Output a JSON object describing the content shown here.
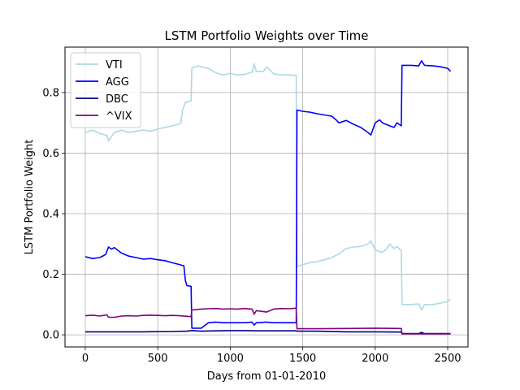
{
  "chart_data": {
    "type": "line",
    "title": "LSTM Portfolio Weights over Time",
    "xlabel": "Days from 01-01-2010",
    "ylabel": "LSTM Portfolio Weight",
    "xlim": [
      -140,
      2640
    ],
    "ylim": [
      -0.04,
      0.95
    ],
    "xticks": [
      0,
      500,
      1000,
      1500,
      2000,
      2500
    ],
    "yticks": [
      0.0,
      0.2,
      0.4,
      0.6,
      0.8
    ],
    "ytick_labels": [
      "0.0",
      "0.2",
      "0.4",
      "0.6",
      "0.8"
    ],
    "grid": true,
    "legend_position": "upper-left",
    "series": [
      {
        "name": "VTI",
        "color": "#add8e6",
        "points": [
          [
            0,
            0.668
          ],
          [
            50,
            0.676
          ],
          [
            100,
            0.665
          ],
          [
            150,
            0.658
          ],
          [
            160,
            0.64
          ],
          [
            200,
            0.668
          ],
          [
            250,
            0.676
          ],
          [
            300,
            0.668
          ],
          [
            350,
            0.672
          ],
          [
            400,
            0.676
          ],
          [
            450,
            0.672
          ],
          [
            500,
            0.68
          ],
          [
            550,
            0.685
          ],
          [
            600,
            0.69
          ],
          [
            640,
            0.695
          ],
          [
            660,
            0.7
          ],
          [
            670,
            0.74
          ],
          [
            690,
            0.768
          ],
          [
            730,
            0.772
          ],
          [
            735,
            0.88
          ],
          [
            780,
            0.888
          ],
          [
            800,
            0.885
          ],
          [
            850,
            0.88
          ],
          [
            900,
            0.865
          ],
          [
            950,
            0.858
          ],
          [
            1000,
            0.864
          ],
          [
            1050,
            0.858
          ],
          [
            1100,
            0.86
          ],
          [
            1150,
            0.867
          ],
          [
            1165,
            0.895
          ],
          [
            1180,
            0.87
          ],
          [
            1230,
            0.87
          ],
          [
            1250,
            0.885
          ],
          [
            1300,
            0.862
          ],
          [
            1350,
            0.858
          ],
          [
            1400,
            0.858
          ],
          [
            1455,
            0.857
          ],
          [
            1460,
            0.225
          ],
          [
            1500,
            0.232
          ],
          [
            1550,
            0.238
          ],
          [
            1600,
            0.242
          ],
          [
            1650,
            0.248
          ],
          [
            1700,
            0.255
          ],
          [
            1750,
            0.268
          ],
          [
            1800,
            0.285
          ],
          [
            1850,
            0.29
          ],
          [
            1900,
            0.292
          ],
          [
            1950,
            0.3
          ],
          [
            1970,
            0.31
          ],
          [
            2000,
            0.28
          ],
          [
            2050,
            0.272
          ],
          [
            2080,
            0.285
          ],
          [
            2100,
            0.3
          ],
          [
            2130,
            0.285
          ],
          [
            2150,
            0.292
          ],
          [
            2180,
            0.278
          ],
          [
            2185,
            0.1
          ],
          [
            2250,
            0.1
          ],
          [
            2300,
            0.102
          ],
          [
            2320,
            0.082
          ],
          [
            2340,
            0.1
          ],
          [
            2400,
            0.1
          ],
          [
            2450,
            0.105
          ],
          [
            2500,
            0.11
          ],
          [
            2520,
            0.118
          ]
        ]
      },
      {
        "name": "AGG",
        "color": "#0000ff",
        "points": [
          [
            0,
            0.258
          ],
          [
            50,
            0.252
          ],
          [
            100,
            0.255
          ],
          [
            140,
            0.265
          ],
          [
            160,
            0.29
          ],
          [
            180,
            0.283
          ],
          [
            200,
            0.288
          ],
          [
            250,
            0.27
          ],
          [
            300,
            0.26
          ],
          [
            350,
            0.255
          ],
          [
            400,
            0.25
          ],
          [
            450,
            0.252
          ],
          [
            500,
            0.248
          ],
          [
            550,
            0.245
          ],
          [
            600,
            0.238
          ],
          [
            650,
            0.232
          ],
          [
            680,
            0.228
          ],
          [
            690,
            0.18
          ],
          [
            700,
            0.163
          ],
          [
            730,
            0.16
          ],
          [
            735,
            0.022
          ],
          [
            800,
            0.022
          ],
          [
            850,
            0.04
          ],
          [
            900,
            0.042
          ],
          [
            950,
            0.04
          ],
          [
            1000,
            0.04
          ],
          [
            1100,
            0.04
          ],
          [
            1150,
            0.042
          ],
          [
            1165,
            0.032
          ],
          [
            1180,
            0.04
          ],
          [
            1250,
            0.042
          ],
          [
            1300,
            0.04
          ],
          [
            1400,
            0.04
          ],
          [
            1455,
            0.04
          ],
          [
            1460,
            0.742
          ],
          [
            1500,
            0.738
          ],
          [
            1550,
            0.735
          ],
          [
            1600,
            0.73
          ],
          [
            1650,
            0.726
          ],
          [
            1700,
            0.722
          ],
          [
            1730,
            0.71
          ],
          [
            1750,
            0.7
          ],
          [
            1800,
            0.708
          ],
          [
            1850,
            0.695
          ],
          [
            1900,
            0.685
          ],
          [
            1950,
            0.668
          ],
          [
            1970,
            0.66
          ],
          [
            2000,
            0.7
          ],
          [
            2030,
            0.71
          ],
          [
            2050,
            0.7
          ],
          [
            2100,
            0.69
          ],
          [
            2130,
            0.685
          ],
          [
            2150,
            0.7
          ],
          [
            2180,
            0.69
          ],
          [
            2185,
            0.89
          ],
          [
            2250,
            0.89
          ],
          [
            2300,
            0.888
          ],
          [
            2320,
            0.905
          ],
          [
            2340,
            0.89
          ],
          [
            2400,
            0.888
          ],
          [
            2450,
            0.885
          ],
          [
            2500,
            0.88
          ],
          [
            2520,
            0.87
          ]
        ]
      },
      {
        "name": "DBC",
        "color": "#00008b",
        "points": [
          [
            0,
            0.01
          ],
          [
            200,
            0.01
          ],
          [
            400,
            0.01
          ],
          [
            600,
            0.011
          ],
          [
            700,
            0.012
          ],
          [
            735,
            0.014
          ],
          [
            800,
            0.012
          ],
          [
            900,
            0.013
          ],
          [
            1000,
            0.014
          ],
          [
            1100,
            0.014
          ],
          [
            1200,
            0.013
          ],
          [
            1300,
            0.013
          ],
          [
            1455,
            0.013
          ],
          [
            1460,
            0.012
          ],
          [
            1600,
            0.012
          ],
          [
            1800,
            0.01
          ],
          [
            2000,
            0.01
          ],
          [
            2180,
            0.009
          ],
          [
            2185,
            0.004
          ],
          [
            2300,
            0.004
          ],
          [
            2320,
            0.008
          ],
          [
            2340,
            0.004
          ],
          [
            2520,
            0.004
          ]
        ]
      },
      {
        "name": "^VIX",
        "color": "#800080",
        "points": [
          [
            0,
            0.063
          ],
          [
            50,
            0.065
          ],
          [
            100,
            0.062
          ],
          [
            150,
            0.066
          ],
          [
            160,
            0.058
          ],
          [
            200,
            0.058
          ],
          [
            250,
            0.062
          ],
          [
            300,
            0.063
          ],
          [
            350,
            0.062
          ],
          [
            400,
            0.064
          ],
          [
            450,
            0.065
          ],
          [
            500,
            0.064
          ],
          [
            550,
            0.063
          ],
          [
            600,
            0.064
          ],
          [
            650,
            0.063
          ],
          [
            730,
            0.06
          ],
          [
            735,
            0.082
          ],
          [
            800,
            0.085
          ],
          [
            850,
            0.086
          ],
          [
            900,
            0.087
          ],
          [
            950,
            0.085
          ],
          [
            1000,
            0.086
          ],
          [
            1050,
            0.085
          ],
          [
            1100,
            0.087
          ],
          [
            1150,
            0.085
          ],
          [
            1165,
            0.068
          ],
          [
            1180,
            0.08
          ],
          [
            1250,
            0.075
          ],
          [
            1300,
            0.085
          ],
          [
            1350,
            0.087
          ],
          [
            1400,
            0.086
          ],
          [
            1455,
            0.088
          ],
          [
            1460,
            0.02
          ],
          [
            1600,
            0.02
          ],
          [
            1800,
            0.021
          ],
          [
            2000,
            0.022
          ],
          [
            2180,
            0.021
          ],
          [
            2185,
            0.003
          ],
          [
            2520,
            0.003
          ]
        ]
      }
    ]
  }
}
